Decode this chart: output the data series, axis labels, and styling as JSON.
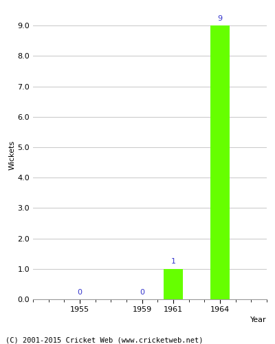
{
  "years": [
    1955,
    1959,
    1961,
    1964
  ],
  "wickets": [
    0,
    0,
    1,
    9
  ],
  "bar_color": "#66ff00",
  "bar_width": 1.2,
  "ylabel": "Wickets",
  "xlabel": "Year",
  "ylim": [
    0,
    9.5
  ],
  "yticks": [
    0.0,
    1.0,
    2.0,
    3.0,
    4.0,
    5.0,
    6.0,
    7.0,
    8.0,
    9.0
  ],
  "label_color": "#3333cc",
  "label_fontsize": 8,
  "axis_fontsize": 8,
  "tick_fontsize": 8,
  "grid_color": "#cccccc",
  "bg_color": "#ffffff",
  "footer": "(C) 2001-2015 Cricket Web (www.cricketweb.net)",
  "footer_fontsize": 7.5,
  "xlim": [
    1952,
    1967
  ]
}
